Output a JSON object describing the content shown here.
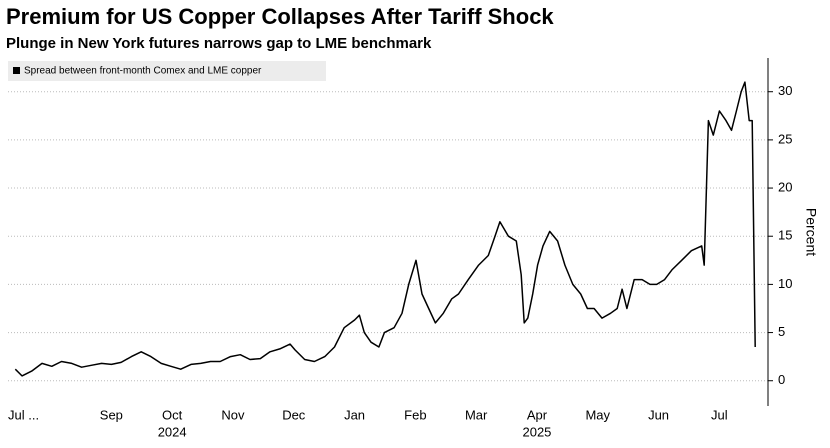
{
  "chart_data": {
    "type": "line",
    "title": "Premium for US Copper Collapses After Tariff Shock",
    "subtitle": "Plunge in New York futures narrows gap to LME benchmark",
    "ylabel": "Percent",
    "series": [
      {
        "name": "Spread between front-month Comex and LME copper",
        "color": "#000000",
        "x": [
          0.42,
          0.53,
          0.69,
          0.86,
          1.02,
          1.18,
          1.35,
          1.51,
          1.67,
          1.84,
          2.0,
          2.16,
          2.33,
          2.49,
          2.65,
          2.82,
          2.98,
          3.14,
          3.31,
          3.47,
          3.63,
          3.79,
          3.96,
          4.12,
          4.28,
          4.45,
          4.61,
          4.77,
          4.94,
          5.02,
          5.18,
          5.34,
          5.51,
          5.67,
          5.83,
          6.0,
          6.08,
          6.16,
          6.27,
          6.4,
          6.49,
          6.65,
          6.78,
          6.89,
          7.01,
          7.11,
          7.22,
          7.33,
          7.46,
          7.6,
          7.71,
          7.87,
          8.04,
          8.2,
          8.31,
          8.39,
          8.53,
          8.66,
          8.74,
          8.79,
          8.85,
          8.93,
          9.01,
          9.1,
          9.21,
          9.34,
          9.46,
          9.59,
          9.72,
          9.83,
          9.94,
          10.07,
          10.21,
          10.32,
          10.4,
          10.48,
          10.6,
          10.73,
          10.86,
          10.97,
          11.1,
          11.22,
          11.38,
          11.54,
          11.71,
          11.75,
          11.82,
          11.9,
          12.0,
          12.11,
          12.2,
          12.28,
          12.36,
          12.42,
          12.49,
          12.54,
          12.59
        ],
        "values": [
          1.2,
          0.5,
          1,
          1.8,
          1.5,
          2,
          1.8,
          1.4,
          1.6,
          1.8,
          1.7,
          1.9,
          2.5,
          3,
          2.5,
          1.8,
          1.5,
          1.2,
          1.7,
          1.8,
          2,
          2,
          2.5,
          2.7,
          2.2,
          2.3,
          3,
          3.3,
          3.8,
          3.2,
          2.2,
          2,
          2.5,
          3.5,
          5.5,
          6.3,
          6.8,
          5,
          4,
          3.5,
          5,
          5.5,
          7,
          10,
          12.5,
          9,
          7.5,
          6,
          7,
          8.5,
          9,
          10.5,
          12,
          13,
          15,
          16.5,
          15,
          14.5,
          11,
          6,
          6.5,
          9,
          12,
          14,
          15.5,
          14.5,
          12,
          10,
          9,
          7.5,
          7.5,
          6.5,
          7,
          7.5,
          9.5,
          7.5,
          10.5,
          10.5,
          10,
          10,
          10.5,
          11.5,
          12.5,
          13.5,
          14,
          12,
          27,
          25.5,
          28,
          27,
          26,
          28,
          30,
          31,
          27,
          27,
          3.5
        ]
      }
    ],
    "xlim": [
      0.3,
      12.8
    ],
    "xticks": [
      {
        "value": 0,
        "label": "Jul ..."
      },
      {
        "value": 2,
        "label": "Sep"
      },
      {
        "value": 3,
        "label": "Oct"
      },
      {
        "value": 4,
        "label": "Nov"
      },
      {
        "value": 5,
        "label": "Dec"
      },
      {
        "value": 6,
        "label": "Jan"
      },
      {
        "value": 7,
        "label": "Feb"
      },
      {
        "value": 8,
        "label": "Mar"
      },
      {
        "value": 9,
        "label": "Apr"
      },
      {
        "value": 10,
        "label": "May"
      },
      {
        "value": 11,
        "label": "Jun"
      },
      {
        "value": 12,
        "label": "Jul"
      }
    ],
    "year_labels": [
      {
        "value": 3,
        "label": "2024"
      },
      {
        "value": 9,
        "label": "2025"
      }
    ],
    "ylim": [
      -2,
      33.5
    ],
    "yticks": [
      0,
      5,
      10,
      15,
      20,
      25,
      30
    ],
    "grid": true
  }
}
